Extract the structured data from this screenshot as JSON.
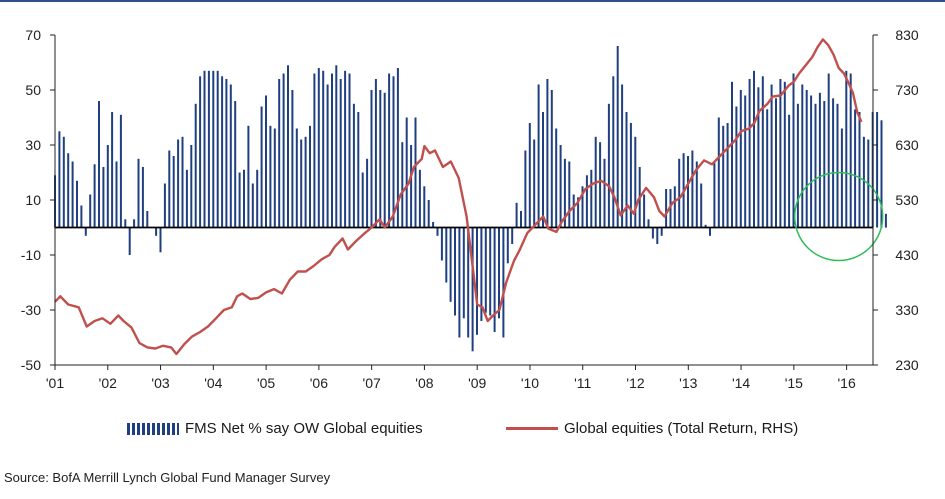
{
  "chart_data": {
    "type": "bar+line",
    "title": "",
    "x_labels": [
      "'01",
      "'02",
      "'03",
      "'04",
      "'05",
      "'06",
      "'07",
      "'08",
      "'09",
      "'10",
      "'11",
      "'12",
      "'13",
      "'14",
      "'15",
      "'16"
    ],
    "y_left": {
      "ticks": [
        70,
        50,
        30,
        10,
        -10,
        -30,
        -50
      ],
      "range": [
        -50,
        70
      ]
    },
    "y_right": {
      "ticks": [
        830,
        730,
        630,
        530,
        430,
        330,
        230
      ],
      "range": [
        230,
        830
      ]
    },
    "series": [
      {
        "name": "FMS Net % say OW Global equities",
        "kind": "bar",
        "axis": "left",
        "color": "#1f3f80",
        "x_start": 2001.0,
        "x_step": 0.0833,
        "values": [
          19,
          35,
          33,
          27,
          24,
          17,
          8,
          -3,
          12,
          23,
          46,
          22,
          30,
          42,
          24,
          41,
          3,
          -10,
          3,
          25,
          22,
          6,
          0,
          -3,
          -9,
          16,
          28,
          26,
          32,
          33,
          21,
          30,
          45,
          55,
          57,
          57,
          57,
          57,
          55,
          54,
          52,
          46,
          20,
          21,
          37,
          16,
          21,
          44,
          48,
          37,
          36,
          54,
          56,
          59,
          50,
          36,
          32,
          33,
          37,
          56,
          58,
          57,
          52,
          56,
          59,
          54,
          57,
          56,
          45,
          42,
          20,
          25,
          50,
          54,
          50,
          49,
          56,
          55,
          58,
          31,
          40,
          30,
          40,
          21,
          15,
          10,
          2,
          -3,
          -12,
          -20,
          -27,
          -32,
          -40,
          -33,
          -40,
          -45,
          -39,
          -34,
          -31,
          -32,
          -38,
          -33,
          -40,
          -13,
          -6,
          9,
          6,
          28,
          38,
          32,
          52,
          42,
          54,
          50,
          36,
          30,
          25,
          24,
          12,
          11,
          15,
          19,
          21,
          33,
          31,
          25,
          45,
          55,
          66,
          52,
          42,
          38,
          33,
          22,
          12,
          3,
          -4,
          -6,
          -3,
          14,
          14,
          15,
          25,
          27,
          26,
          28,
          24,
          16,
          1,
          -3,
          24,
          40,
          37,
          38,
          53,
          44,
          50,
          48,
          54,
          57,
          51,
          55,
          43,
          52,
          47,
          54,
          53,
          41,
          56,
          45,
          52,
          50,
          48,
          45,
          49,
          46,
          56,
          47,
          45,
          36,
          57,
          56,
          43,
          42,
          33,
          32,
          42,
          42,
          39,
          5
        ]
      },
      {
        "name": "Global equities (Total Return, RHS)",
        "kind": "line",
        "axis": "right",
        "color": "#c0504d",
        "points": [
          [
            2001.0,
            345
          ],
          [
            2001.1,
            355
          ],
          [
            2001.25,
            340
          ],
          [
            2001.45,
            335
          ],
          [
            2001.6,
            300
          ],
          [
            2001.75,
            310
          ],
          [
            2001.9,
            315
          ],
          [
            2002.05,
            305
          ],
          [
            2002.2,
            320
          ],
          [
            2002.3,
            310
          ],
          [
            2002.45,
            298
          ],
          [
            2002.6,
            270
          ],
          [
            2002.75,
            262
          ],
          [
            2002.9,
            260
          ],
          [
            2003.05,
            265
          ],
          [
            2003.2,
            262
          ],
          [
            2003.3,
            250
          ],
          [
            2003.45,
            268
          ],
          [
            2003.6,
            282
          ],
          [
            2003.75,
            290
          ],
          [
            2003.9,
            300
          ],
          [
            2004.05,
            315
          ],
          [
            2004.2,
            330
          ],
          [
            2004.35,
            335
          ],
          [
            2004.45,
            355
          ],
          [
            2004.55,
            360
          ],
          [
            2004.7,
            350
          ],
          [
            2004.85,
            352
          ],
          [
            2005.0,
            362
          ],
          [
            2005.15,
            368
          ],
          [
            2005.3,
            360
          ],
          [
            2005.45,
            385
          ],
          [
            2005.6,
            400
          ],
          [
            2005.75,
            400
          ],
          [
            2005.9,
            410
          ],
          [
            2006.05,
            422
          ],
          [
            2006.2,
            430
          ],
          [
            2006.3,
            445
          ],
          [
            2006.45,
            460
          ],
          [
            2006.55,
            440
          ],
          [
            2006.7,
            455
          ],
          [
            2006.85,
            468
          ],
          [
            2007.0,
            480
          ],
          [
            2007.15,
            495
          ],
          [
            2007.25,
            480
          ],
          [
            2007.4,
            500
          ],
          [
            2007.55,
            540
          ],
          [
            2007.7,
            560
          ],
          [
            2007.8,
            590
          ],
          [
            2007.95,
            605
          ],
          [
            2008.0,
            628
          ],
          [
            2008.1,
            615
          ],
          [
            2008.2,
            620
          ],
          [
            2008.35,
            590
          ],
          [
            2008.5,
            600
          ],
          [
            2008.65,
            570
          ],
          [
            2008.8,
            500
          ],
          [
            2008.9,
            420
          ],
          [
            2009.0,
            340
          ],
          [
            2009.1,
            335
          ],
          [
            2009.2,
            310
          ],
          [
            2009.3,
            320
          ],
          [
            2009.42,
            330
          ],
          [
            2009.55,
            380
          ],
          [
            2009.7,
            420
          ],
          [
            2009.8,
            438
          ],
          [
            2009.95,
            470
          ],
          [
            2010.1,
            485
          ],
          [
            2010.25,
            500
          ],
          [
            2010.35,
            478
          ],
          [
            2010.5,
            472
          ],
          [
            2010.6,
            490
          ],
          [
            2010.75,
            510
          ],
          [
            2010.9,
            525
          ],
          [
            2011.05,
            550
          ],
          [
            2011.2,
            560
          ],
          [
            2011.35,
            565
          ],
          [
            2011.5,
            555
          ],
          [
            2011.6,
            535
          ],
          [
            2011.72,
            502
          ],
          [
            2011.85,
            520
          ],
          [
            2011.97,
            505
          ],
          [
            2012.05,
            530
          ],
          [
            2012.2,
            552
          ],
          [
            2012.35,
            535
          ],
          [
            2012.45,
            510
          ],
          [
            2012.55,
            500
          ],
          [
            2012.7,
            525
          ],
          [
            2012.85,
            535
          ],
          [
            2013.0,
            560
          ],
          [
            2013.15,
            585
          ],
          [
            2013.3,
            602
          ],
          [
            2013.45,
            595
          ],
          [
            2013.6,
            610
          ],
          [
            2013.75,
            625
          ],
          [
            2013.9,
            640
          ],
          [
            2014.0,
            655
          ],
          [
            2014.15,
            660
          ],
          [
            2014.25,
            670
          ],
          [
            2014.35,
            692
          ],
          [
            2014.5,
            705
          ],
          [
            2014.6,
            718
          ],
          [
            2014.75,
            720
          ],
          [
            2014.9,
            738
          ],
          [
            2015.0,
            745
          ],
          [
            2015.1,
            760
          ],
          [
            2015.25,
            778
          ],
          [
            2015.35,
            790
          ],
          [
            2015.45,
            808
          ],
          [
            2015.55,
            822
          ],
          [
            2015.65,
            812
          ],
          [
            2015.75,
            795
          ],
          [
            2015.85,
            770
          ],
          [
            2015.95,
            760
          ],
          [
            2016.05,
            740
          ],
          [
            2016.12,
            725
          ],
          [
            2016.2,
            690
          ],
          [
            2016.28,
            672
          ]
        ]
      }
    ],
    "annotations": [
      {
        "kind": "circle",
        "color": "#2ebd55",
        "x": 2015.85,
        "y_left": 4
      }
    ],
    "legend": {
      "placement": "bottom"
    },
    "grid": false
  },
  "source": "Source: BofA Merrill Lynch Global Fund Manager Survey"
}
